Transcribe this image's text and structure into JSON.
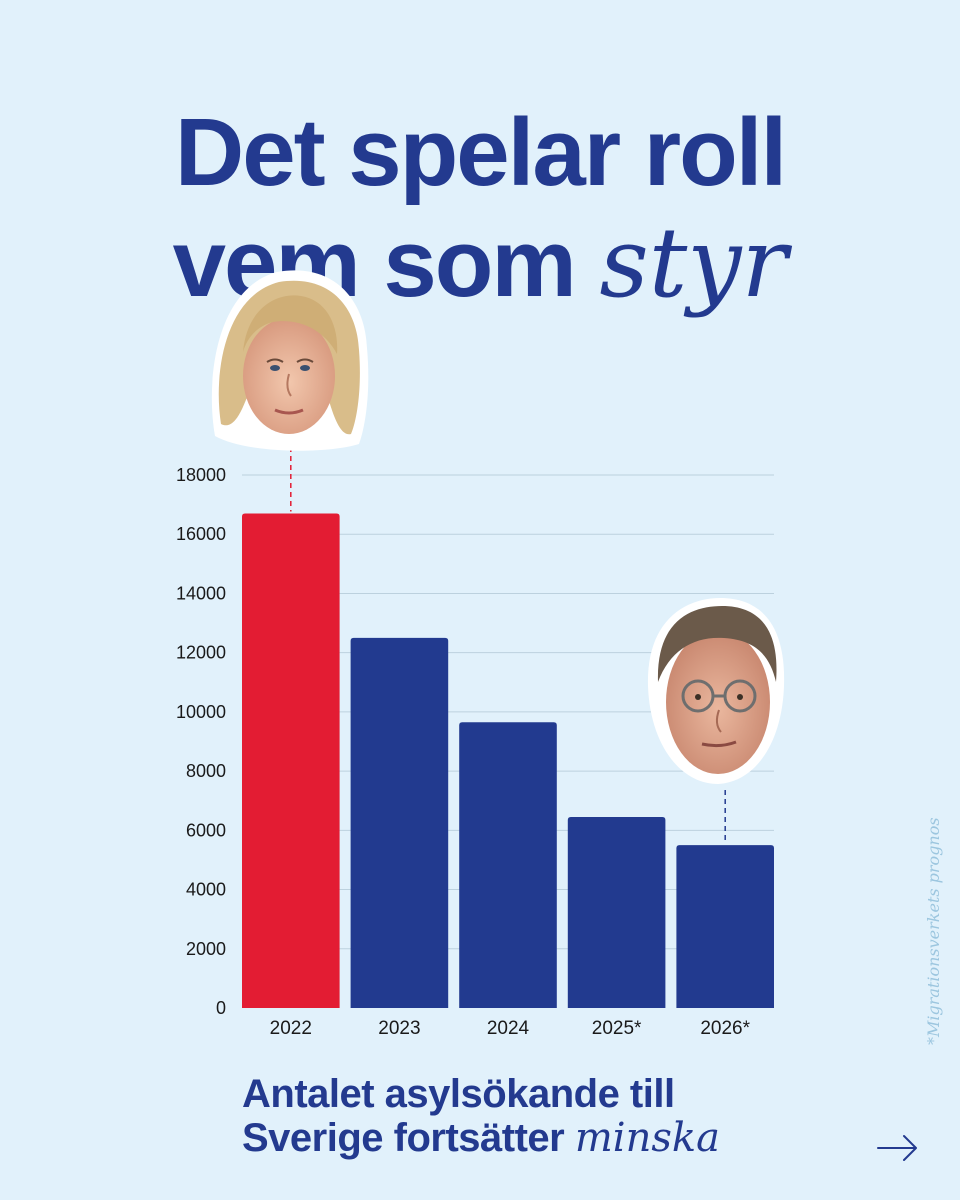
{
  "headline": {
    "line1": "Det spelar roll",
    "line2_main": "vem som ",
    "line2_italic": "styr"
  },
  "chart_data": {
    "type": "bar",
    "title": "",
    "xlabel": "",
    "ylabel": "",
    "categories": [
      "2022",
      "2023",
      "2024",
      "2025*",
      "2026*"
    ],
    "values": [
      16700,
      12500,
      9650,
      6450,
      5500
    ],
    "bar_colors": [
      "#e31c33",
      "#223a8f",
      "#223a8f",
      "#223a8f",
      "#223a8f"
    ],
    "yticks": [
      "0",
      "2000",
      "4000",
      "6000",
      "8000",
      "10000",
      "12000",
      "14000",
      "16000",
      "18000"
    ],
    "ylim": [
      0,
      18000
    ],
    "grid": true
  },
  "portraits": [
    {
      "name": "portrait-2022",
      "category": "2022"
    },
    {
      "name": "portrait-2026",
      "category": "2026*"
    }
  ],
  "caption": {
    "line1": "Antalet asylsökande till",
    "line2_main": "Sverige fortsätter ",
    "line2_italic": "minska"
  },
  "footnote": "*Migrationsverkets prognos",
  "colors": {
    "background": "#e1f1fb",
    "primary_blue": "#233a8f",
    "accent_red": "#e31c33"
  },
  "icons": {
    "next": "arrow-right-icon"
  }
}
